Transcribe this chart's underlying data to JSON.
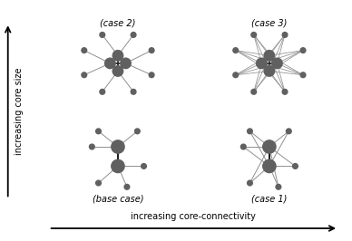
{
  "node_color": "#606060",
  "edge_color": "#909090",
  "core_edge_color": "#202020",
  "bg_color": "#ffffff",
  "label_color": "#000000",
  "quadrant_labels": [
    "(case 2)",
    "(case 3)",
    "(base case)",
    "(case 1)"
  ],
  "ylabel": "increasing core size",
  "xlabel": "increasing core-connectivity",
  "label_fontsize": 7,
  "axis_label_fontsize": 7
}
